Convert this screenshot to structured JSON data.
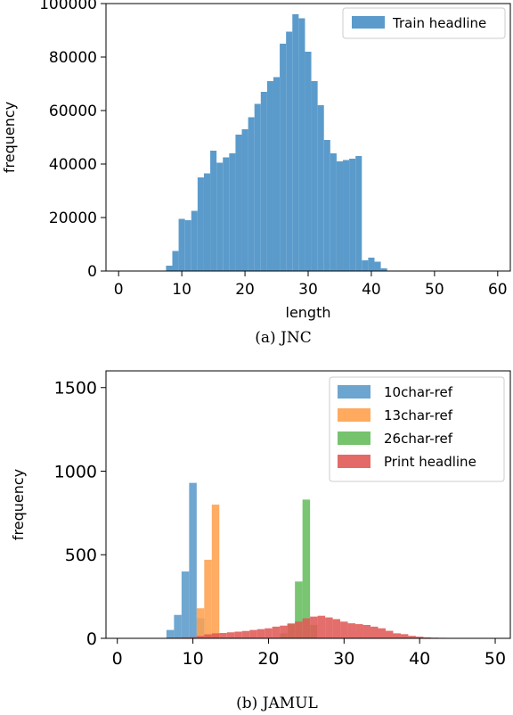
{
  "chart_data": [
    {
      "type": "bar",
      "caption": "(a) JNC",
      "xlabel": "length",
      "ylabel": "frequency",
      "xlim": [
        -2,
        62
      ],
      "ylim": [
        0,
        100000
      ],
      "xticks": [
        0,
        10,
        20,
        30,
        40,
        50,
        60
      ],
      "yticks": [
        0,
        20000,
        40000,
        60000,
        80000,
        100000
      ],
      "grid": false,
      "legend_position": "top-right",
      "bin_width": 1,
      "colors": {
        "Train headline": "#5b9bcb"
      },
      "series": [
        {
          "name": "Train headline",
          "x": [
            0,
            1,
            2,
            3,
            4,
            5,
            6,
            7,
            8,
            9,
            10,
            11,
            12,
            13,
            14,
            15,
            16,
            17,
            18,
            19,
            20,
            21,
            22,
            23,
            24,
            25,
            26,
            27,
            28,
            29,
            30,
            31,
            32,
            33,
            34,
            35,
            36,
            37,
            38,
            39,
            40,
            41,
            42,
            43,
            44,
            45,
            46,
            47,
            48,
            49,
            50,
            51,
            52,
            53,
            54,
            55,
            56,
            57,
            58,
            59,
            60
          ],
          "values": [
            0,
            0,
            0,
            0,
            0,
            0,
            0,
            0,
            2000,
            7500,
            19500,
            19000,
            22500,
            35000,
            36500,
            45000,
            40500,
            42500,
            44000,
            51000,
            53000,
            57500,
            62500,
            67000,
            71000,
            72500,
            85000,
            89500,
            96000,
            94500,
            82000,
            71000,
            62000,
            49000,
            44000,
            41000,
            41500,
            42000,
            43000,
            4000,
            5000,
            3500,
            1000,
            0,
            0,
            0,
            0,
            0,
            0,
            0,
            0,
            0,
            0,
            0,
            0,
            0,
            0,
            0,
            0,
            0,
            0
          ]
        }
      ]
    },
    {
      "type": "bar",
      "caption": "(b) JAMUL",
      "xlabel": "length",
      "ylabel": "frequency",
      "xlim": [
        -1.5,
        52
      ],
      "ylim": [
        0,
        1600
      ],
      "xticks": [
        0,
        10,
        20,
        30,
        40,
        50
      ],
      "yticks": [
        0,
        500,
        1000,
        1500
      ],
      "grid": false,
      "legend_position": "top-right",
      "bin_width": 1,
      "colors": {
        "10char-ref": "#5b9bcb",
        "13char-ref": "#ffa14e",
        "26char-ref": "#67bd5e",
        "Print headline": "#e05a56"
      },
      "series": [
        {
          "name": "10char-ref",
          "x": [
            7,
            8,
            9,
            10,
            11
          ],
          "values": [
            50,
            140,
            400,
            930,
            120
          ]
        },
        {
          "name": "13char-ref",
          "x": [
            11,
            12,
            13
          ],
          "values": [
            180,
            470,
            800
          ]
        },
        {
          "name": "26char-ref",
          "x": [
            22,
            23,
            24,
            25,
            26
          ],
          "values": [
            30,
            90,
            340,
            830,
            80
          ]
        },
        {
          "name": "Print headline",
          "x": [
            6,
            7,
            8,
            9,
            10,
            11,
            12,
            13,
            14,
            15,
            16,
            17,
            18,
            19,
            20,
            21,
            22,
            23,
            24,
            25,
            26,
            27,
            28,
            29,
            30,
            31,
            32,
            33,
            34,
            35,
            36,
            37,
            38,
            39,
            40,
            41,
            42,
            43,
            44,
            45,
            46,
            47,
            48,
            49,
            50,
            51
          ],
          "values": [
            2,
            3,
            4,
            6,
            8,
            14,
            24,
            30,
            32,
            36,
            40,
            44,
            50,
            55,
            60,
            70,
            76,
            85,
            100,
            120,
            130,
            135,
            125,
            115,
            100,
            90,
            85,
            80,
            70,
            60,
            45,
            30,
            25,
            15,
            10,
            6,
            4,
            3,
            2,
            2,
            1,
            1,
            1,
            0,
            0,
            2
          ]
        }
      ]
    }
  ]
}
